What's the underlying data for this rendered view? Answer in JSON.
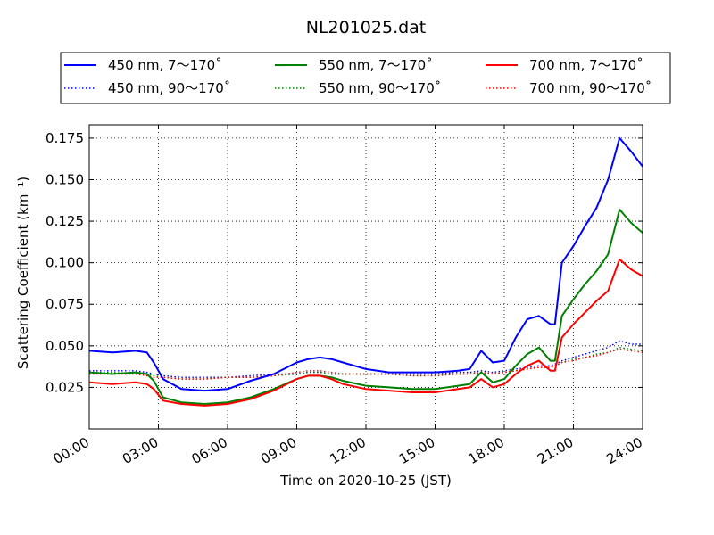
{
  "chart_data": {
    "type": "line",
    "title": "NL201025.dat",
    "xlabel": "Time on 2020-10-25 (JST)",
    "ylabel": "Scattering Coefficient (km⁻¹)",
    "x_ticks": [
      "00:00",
      "03:00",
      "06:00",
      "09:00",
      "12:00",
      "15:00",
      "18:00",
      "21:00",
      "24:00"
    ],
    "y_ticks": [
      "0.025",
      "0.050",
      "0.075",
      "0.100",
      "0.125",
      "0.150",
      "0.175"
    ],
    "xlim": [
      0,
      24
    ],
    "ylim": [
      0.0,
      0.183
    ],
    "grid": true,
    "legend_position": "top",
    "x_hours": [
      0,
      1,
      2,
      2.5,
      2.8,
      3.2,
      4,
      5,
      6,
      7,
      8,
      9,
      9.5,
      10,
      10.5,
      11,
      12,
      13,
      14,
      15,
      16,
      16.5,
      17,
      17.5,
      18,
      18.5,
      19,
      19.5,
      20,
      20.2,
      20.5,
      21,
      21.5,
      22,
      22.5,
      23,
      23.5,
      24
    ],
    "series": [
      {
        "name": "450 nm, 7～170˚",
        "color": "#0000ff",
        "style": "solid",
        "values": [
          0.047,
          0.046,
          0.047,
          0.046,
          0.04,
          0.03,
          0.024,
          0.023,
          0.024,
          0.029,
          0.033,
          0.04,
          0.042,
          0.043,
          0.042,
          0.04,
          0.036,
          0.034,
          0.034,
          0.034,
          0.035,
          0.036,
          0.047,
          0.04,
          0.041,
          0.055,
          0.066,
          0.068,
          0.063,
          0.063,
          0.1,
          0.11,
          0.122,
          0.133,
          0.15,
          0.175,
          0.167,
          0.158
        ]
      },
      {
        "name": "450 nm, 90～170˚",
        "color": "#0000ff",
        "style": "dotted",
        "values": [
          0.035,
          0.035,
          0.035,
          0.034,
          0.033,
          0.032,
          0.031,
          0.031,
          0.031,
          0.032,
          0.033,
          0.033,
          0.034,
          0.034,
          0.033,
          0.033,
          0.033,
          0.033,
          0.033,
          0.033,
          0.034,
          0.034,
          0.035,
          0.034,
          0.035,
          0.036,
          0.037,
          0.038,
          0.038,
          0.039,
          0.041,
          0.043,
          0.045,
          0.047,
          0.049,
          0.053,
          0.051,
          0.051
        ]
      },
      {
        "name": "550 nm, 7～170˚",
        "color": "#008000",
        "style": "solid",
        "values": [
          0.034,
          0.033,
          0.034,
          0.033,
          0.029,
          0.019,
          0.016,
          0.015,
          0.016,
          0.019,
          0.024,
          0.03,
          0.032,
          0.032,
          0.031,
          0.029,
          0.026,
          0.025,
          0.024,
          0.024,
          0.026,
          0.027,
          0.034,
          0.028,
          0.03,
          0.038,
          0.045,
          0.049,
          0.041,
          0.041,
          0.068,
          0.078,
          0.087,
          0.095,
          0.105,
          0.132,
          0.124,
          0.118
        ]
      },
      {
        "name": "550 nm, 90～170˚",
        "color": "#008000",
        "style": "dotted",
        "values": [
          0.034,
          0.034,
          0.033,
          0.033,
          0.032,
          0.031,
          0.03,
          0.03,
          0.031,
          0.031,
          0.032,
          0.033,
          0.034,
          0.034,
          0.033,
          0.033,
          0.033,
          0.033,
          0.032,
          0.032,
          0.033,
          0.033,
          0.034,
          0.033,
          0.034,
          0.035,
          0.036,
          0.037,
          0.037,
          0.038,
          0.04,
          0.042,
          0.043,
          0.045,
          0.046,
          0.049,
          0.048,
          0.047
        ]
      },
      {
        "name": "700 nm, 7～170˚",
        "color": "#ff0000",
        "style": "solid",
        "values": [
          0.028,
          0.027,
          0.028,
          0.027,
          0.024,
          0.017,
          0.015,
          0.014,
          0.015,
          0.018,
          0.023,
          0.03,
          0.032,
          0.032,
          0.03,
          0.027,
          0.024,
          0.023,
          0.022,
          0.022,
          0.024,
          0.025,
          0.03,
          0.025,
          0.027,
          0.033,
          0.038,
          0.041,
          0.035,
          0.035,
          0.055,
          0.063,
          0.07,
          0.077,
          0.083,
          0.102,
          0.096,
          0.092
        ]
      },
      {
        "name": "700 nm, 90～170˚",
        "color": "#ff0000",
        "style": "dotted",
        "values": [
          0.033,
          0.033,
          0.033,
          0.032,
          0.031,
          0.031,
          0.03,
          0.03,
          0.031,
          0.031,
          0.032,
          0.034,
          0.035,
          0.035,
          0.034,
          0.033,
          0.033,
          0.033,
          0.032,
          0.032,
          0.033,
          0.033,
          0.034,
          0.033,
          0.034,
          0.035,
          0.036,
          0.037,
          0.037,
          0.038,
          0.04,
          0.041,
          0.043,
          0.044,
          0.046,
          0.048,
          0.047,
          0.046
        ]
      }
    ]
  }
}
